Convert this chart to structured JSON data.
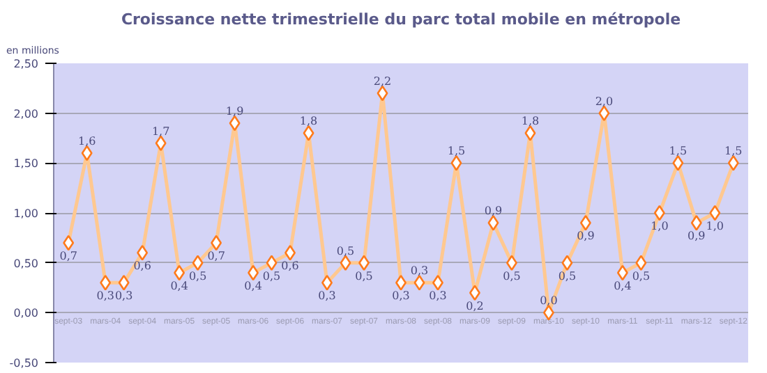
{
  "chart_data": {
    "type": "line",
    "title": "Croissance nette trimestrielle du parc total mobile en métropole",
    "ylabel": "en millions",
    "categories": [
      "sept-03",
      null,
      "mars-04",
      null,
      "sept-04",
      null,
      "mars-05",
      null,
      "sept-05",
      null,
      "mars-06",
      null,
      "sept-06",
      null,
      "mars-07",
      null,
      "sept-07",
      null,
      "mars-08",
      null,
      "sept-08",
      null,
      "mars-09",
      null,
      "sept-09",
      null,
      "mars-10",
      null,
      "sept-10",
      null,
      "mars-11",
      null,
      "sept-11",
      null,
      "mars-12",
      null,
      "sept-12"
    ],
    "series": [
      {
        "color": "#ffc890",
        "values": [
          0.7,
          1.6,
          0.3,
          0.3,
          0.6,
          1.7,
          0.4,
          0.5,
          0.7,
          1.9,
          0.4,
          0.5,
          0.6,
          1.8,
          0.3,
          0.5,
          0.5,
          2.2,
          0.3,
          0.3,
          0.3,
          1.5,
          0.2,
          0.9,
          0.5,
          1.8,
          0.0,
          0.5,
          0.9,
          2.0,
          0.4,
          0.5,
          1.0,
          1.5,
          0.9,
          1.0,
          1.5
        ],
        "value_labels": [
          "0,7",
          "1,6",
          "0,3",
          "0,3",
          "0,6",
          "1,7",
          "0,4",
          "0,5",
          "0,7",
          "1,9",
          "0,4",
          "0,5",
          "0,6",
          "1,8",
          "0,3",
          "0,5",
          "0,5",
          "2,2",
          "0,3",
          "0,3",
          "0,3",
          "1,5",
          "0,2",
          "0,9",
          "0,5",
          "1,8",
          "0,0",
          "0,5",
          "0,9",
          "2,0",
          "0,4",
          "0,5",
          "1,0",
          "1,5",
          "0,9",
          "1,0",
          "1,5"
        ]
      }
    ],
    "ylim": [
      -0.5,
      2.5
    ],
    "yticks": [
      {
        "value": -0.5,
        "label": "-0,50"
      },
      {
        "value": 0,
        "label": "0,00"
      },
      {
        "value": 0.5,
        "label": "0,50"
      },
      {
        "value": 1,
        "label": "1,00"
      },
      {
        "value": 1.5,
        "label": "1,50"
      },
      {
        "value": 2,
        "label": "2,00"
      },
      {
        "value": 2.5,
        "label": "2,50"
      }
    ],
    "grid": "y",
    "marker": "diamond"
  }
}
